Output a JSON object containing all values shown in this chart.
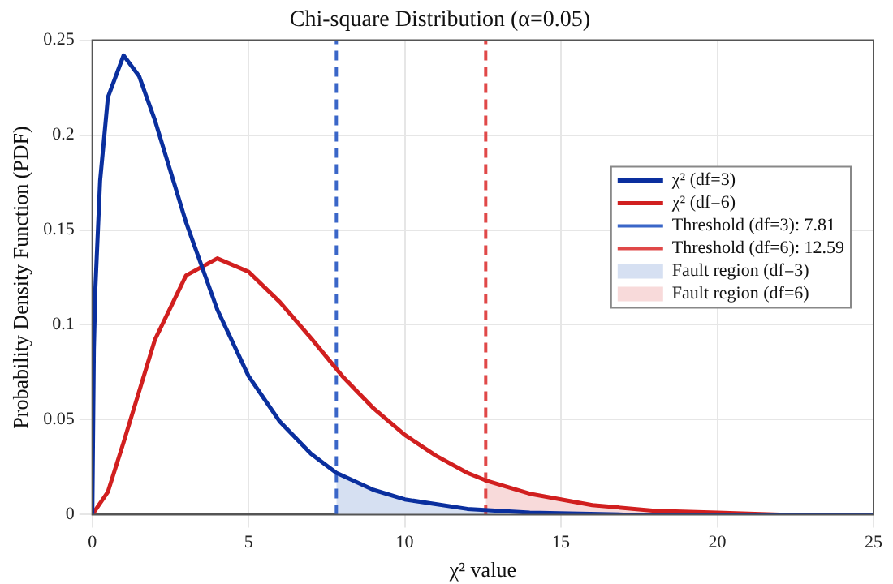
{
  "chart_data": {
    "type": "line",
    "title": "Chi-square Distribution (α=0.05)",
    "xlabel": "χ² value",
    "ylabel": "Probability Density Function (PDF)",
    "xlim": [
      0,
      25
    ],
    "xticks": [
      0,
      5,
      10,
      15,
      20,
      25
    ],
    "ylim": [
      0,
      0.25
    ],
    "yticks": [
      0,
      0.05,
      0.1,
      0.15,
      0.2,
      0.25
    ],
    "grid": true,
    "legend": "right",
    "marker": "none",
    "line_style": "solid",
    "series": [
      {
        "name": "χ² (df=3)",
        "color": "#0a2f9e",
        "x": [
          0,
          0.05,
          0.1,
          0.25,
          0.5,
          1,
          1.5,
          2,
          3,
          4,
          5,
          6,
          7,
          7.81,
          9,
          10,
          12,
          14,
          17,
          20,
          25
        ],
        "values": [
          0,
          0.087,
          0.12,
          0.176,
          0.22,
          0.242,
          0.231,
          0.208,
          0.154,
          0.108,
          0.073,
          0.049,
          0.032,
          0.022,
          0.013,
          0.008,
          0.003,
          0.001,
          0,
          0,
          0
        ]
      },
      {
        "name": "χ² (df=6)",
        "color": "#d11f1f",
        "x": [
          0,
          0.5,
          1,
          2,
          3,
          4,
          5,
          6,
          7,
          8,
          9,
          10,
          11,
          12,
          12.59,
          14,
          16,
          18,
          20,
          22,
          25
        ],
        "values": [
          0,
          0.012,
          0.038,
          0.092,
          0.126,
          0.135,
          0.128,
          0.112,
          0.093,
          0.073,
          0.056,
          0.042,
          0.031,
          0.022,
          0.018,
          0.011,
          0.005,
          0.002,
          0.001,
          0,
          0
        ]
      },
      {
        "name": "Threshold (df=3): 7.81",
        "color": "#3a66c8",
        "line_style": "dashed",
        "x": [
          7.81,
          7.81
        ],
        "values": [
          0,
          0.25
        ]
      },
      {
        "name": "Threshold (df=6): 12.59",
        "color": "#e04848",
        "line_style": "dashed",
        "x": [
          12.59,
          12.59
        ],
        "values": [
          0,
          0.25
        ]
      },
      {
        "name": "Fault region (df=3)",
        "type": "area",
        "color": "#d6e0f2",
        "x": [
          7.81,
          9,
          10,
          12,
          14,
          17,
          20,
          25
        ],
        "values": [
          0.022,
          0.013,
          0.008,
          0.003,
          0.001,
          0,
          0,
          0
        ]
      },
      {
        "name": "Fault region (df=6)",
        "type": "area",
        "color": "#f8dada",
        "x": [
          12.59,
          14,
          16,
          18,
          20,
          22,
          25
        ],
        "values": [
          0.018,
          0.011,
          0.005,
          0.002,
          0.001,
          0,
          0
        ]
      }
    ]
  }
}
